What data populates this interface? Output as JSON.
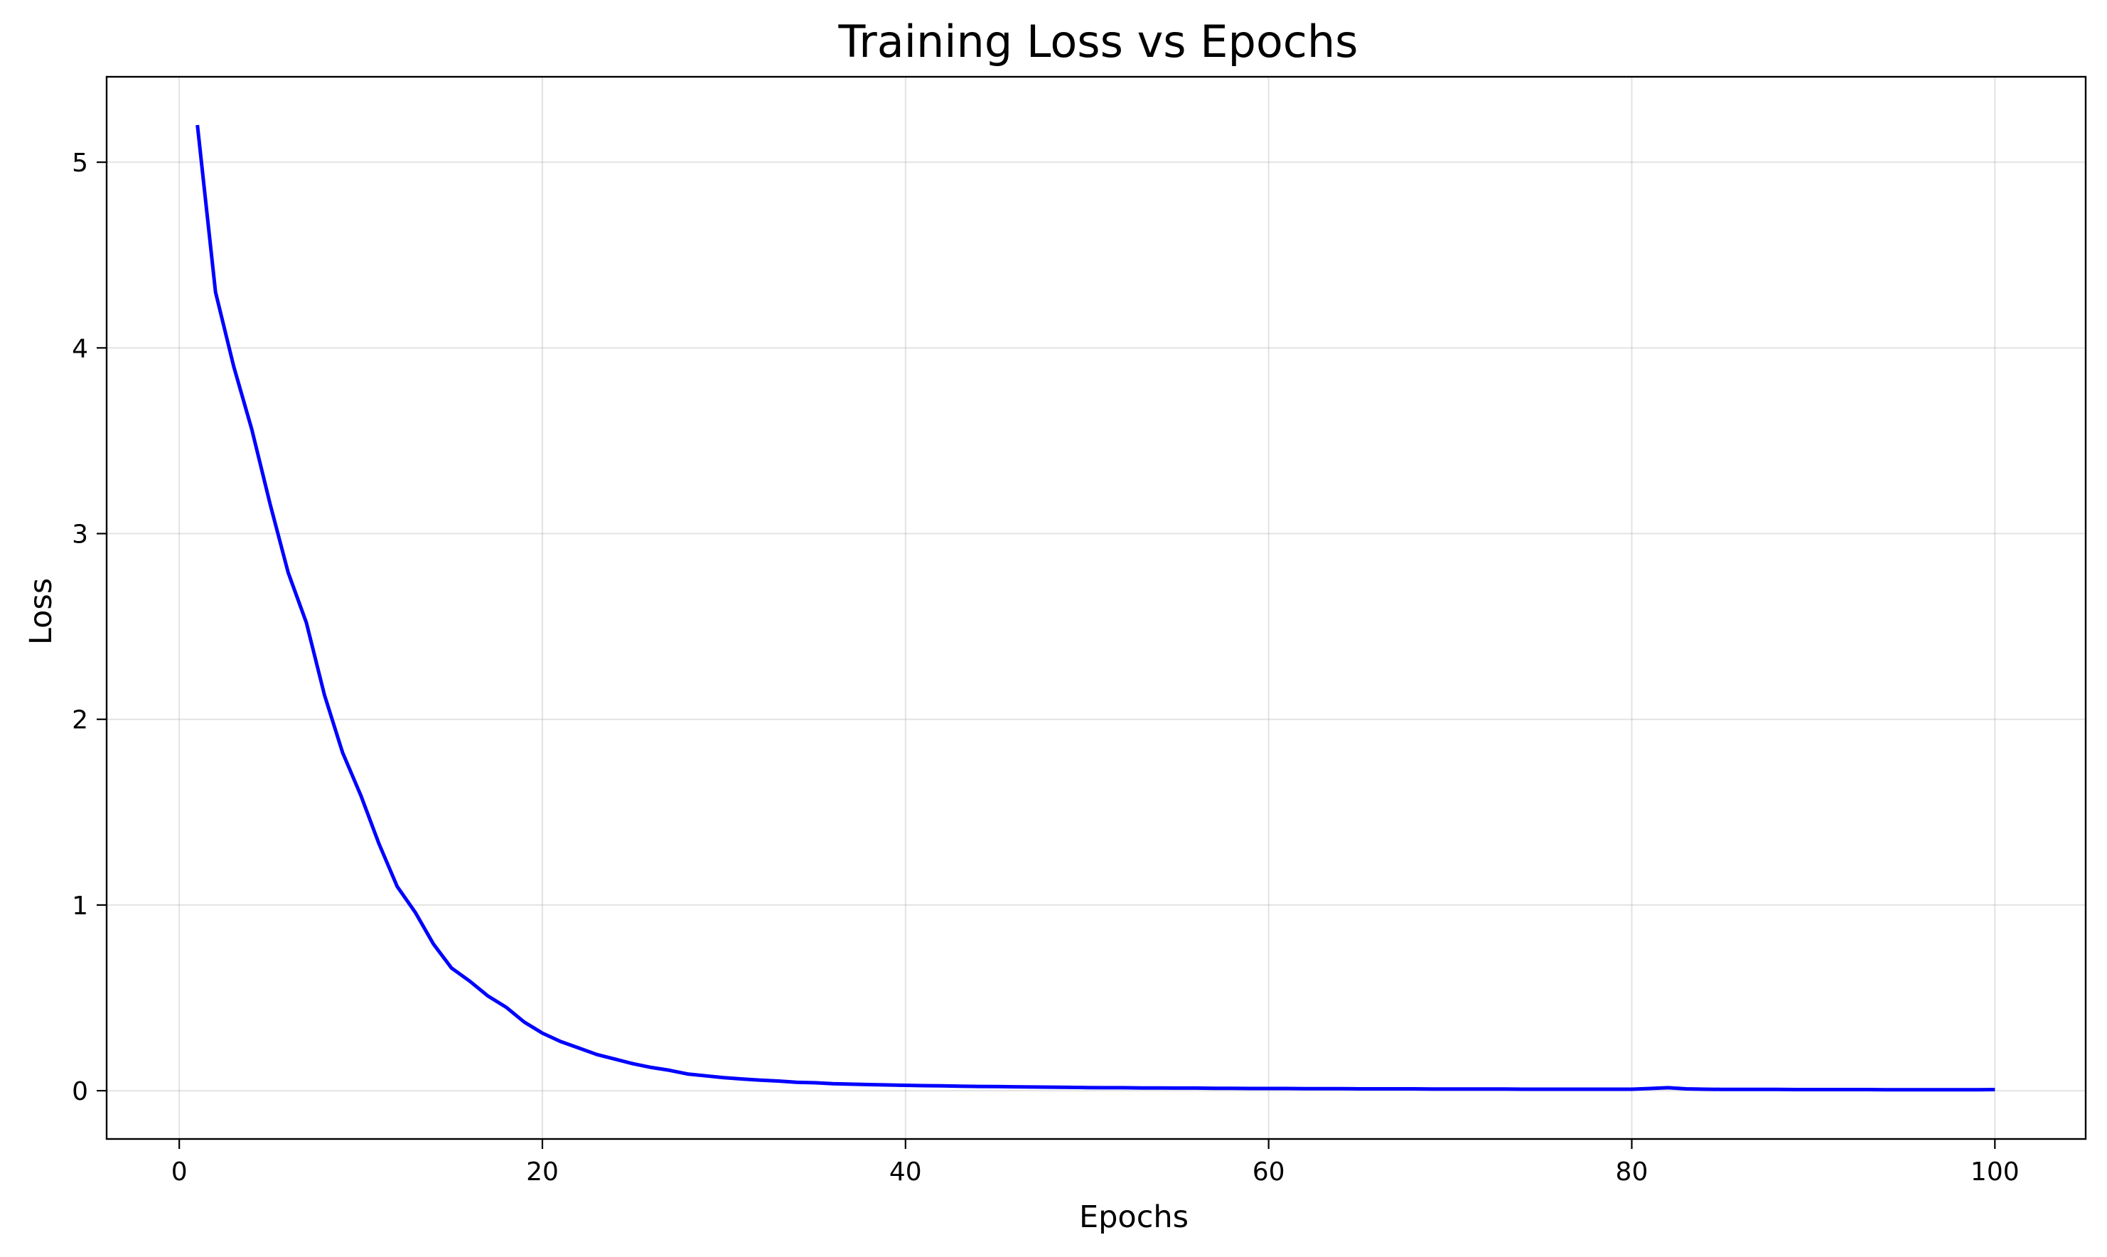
{
  "chart_data": {
    "type": "line",
    "title": "Training Loss vs Epochs",
    "xlabel": "Epochs",
    "ylabel": "Loss",
    "xlim": [
      -4,
      105
    ],
    "ylim": [
      -0.26,
      5.46
    ],
    "grid": true,
    "legend": "none",
    "x_ticks": [
      0,
      20,
      40,
      60,
      80,
      100
    ],
    "y_ticks": [
      0,
      1,
      2,
      3,
      4,
      5
    ],
    "series": [
      {
        "color": "#0000ff",
        "x": [
          1,
          2,
          3,
          4,
          5,
          6,
          7,
          8,
          9,
          10,
          11,
          12,
          13,
          14,
          15,
          16,
          17,
          18,
          19,
          20,
          21,
          22,
          23,
          24,
          25,
          26,
          27,
          28,
          29,
          30,
          31,
          32,
          33,
          34,
          35,
          36,
          37,
          38,
          39,
          40,
          41,
          42,
          43,
          44,
          45,
          46,
          47,
          48,
          49,
          50,
          51,
          52,
          53,
          54,
          55,
          56,
          57,
          58,
          59,
          60,
          61,
          62,
          63,
          64,
          65,
          66,
          67,
          68,
          69,
          70,
          71,
          72,
          73,
          74,
          75,
          76,
          77,
          78,
          79,
          80,
          81,
          82,
          83,
          84,
          85,
          86,
          87,
          88,
          89,
          90,
          91,
          92,
          93,
          94,
          95,
          96,
          97,
          98,
          99,
          100
        ],
        "y": [
          5.2,
          4.3,
          3.9,
          3.56,
          3.16,
          2.79,
          2.52,
          2.13,
          1.82,
          1.59,
          1.33,
          1.1,
          0.96,
          0.79,
          0.66,
          0.59,
          0.51,
          0.45,
          0.37,
          0.31,
          0.265,
          0.23,
          0.195,
          0.17,
          0.145,
          0.125,
          0.11,
          0.09,
          0.08,
          0.07,
          0.063,
          0.057,
          0.052,
          0.045,
          0.043,
          0.038,
          0.035,
          0.033,
          0.031,
          0.029,
          0.027,
          0.026,
          0.024,
          0.023,
          0.022,
          0.021,
          0.02,
          0.019,
          0.018,
          0.017,
          0.016,
          0.016,
          0.015,
          0.015,
          0.014,
          0.014,
          0.013,
          0.013,
          0.012,
          0.012,
          0.012,
          0.011,
          0.011,
          0.011,
          0.01,
          0.01,
          0.01,
          0.01,
          0.009,
          0.009,
          0.009,
          0.009,
          0.009,
          0.008,
          0.008,
          0.008,
          0.008,
          0.008,
          0.008,
          0.008,
          0.012,
          0.016,
          0.01,
          0.008,
          0.007,
          0.007,
          0.007,
          0.007,
          0.006,
          0.006,
          0.006,
          0.006,
          0.006,
          0.005,
          0.005,
          0.005,
          0.005,
          0.005,
          0.005,
          0.006
        ]
      }
    ]
  }
}
